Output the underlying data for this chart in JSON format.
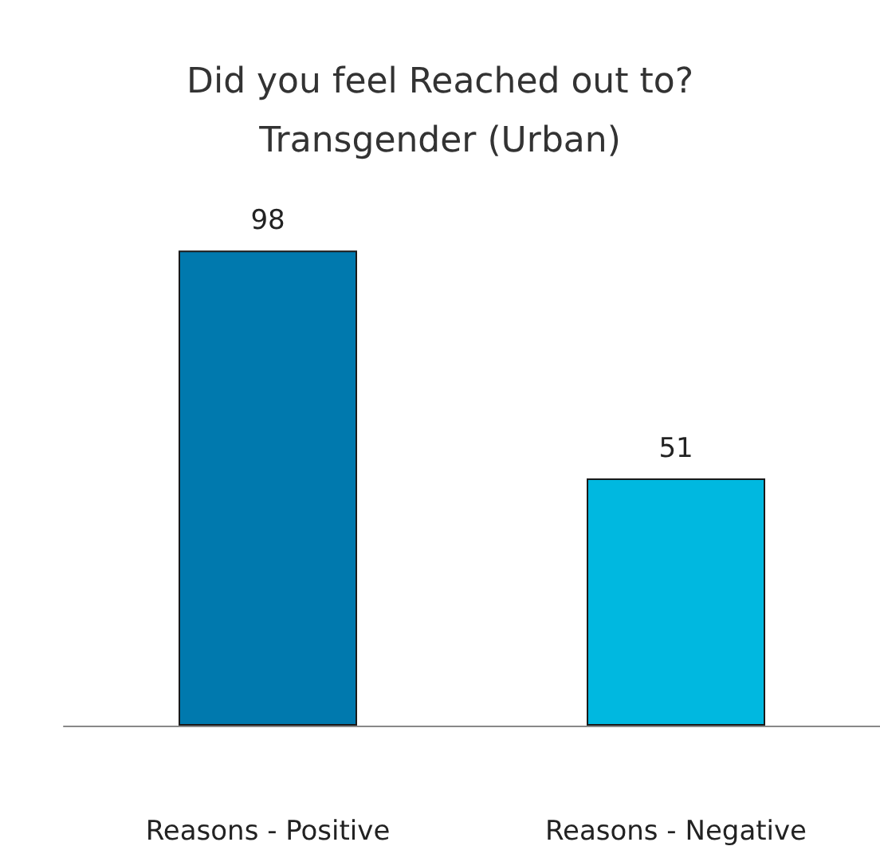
{
  "chart_data": {
    "type": "bar",
    "title": "Did you feel Reached out to?\nTransgender (Urban)",
    "categories": [
      "Reasons - Positive",
      "Reasons - Negative"
    ],
    "values": [
      98,
      51
    ],
    "colors": [
      "#0079ae",
      "#00b8e0"
    ],
    "data_labels": true,
    "tick_labels": "x"
  }
}
